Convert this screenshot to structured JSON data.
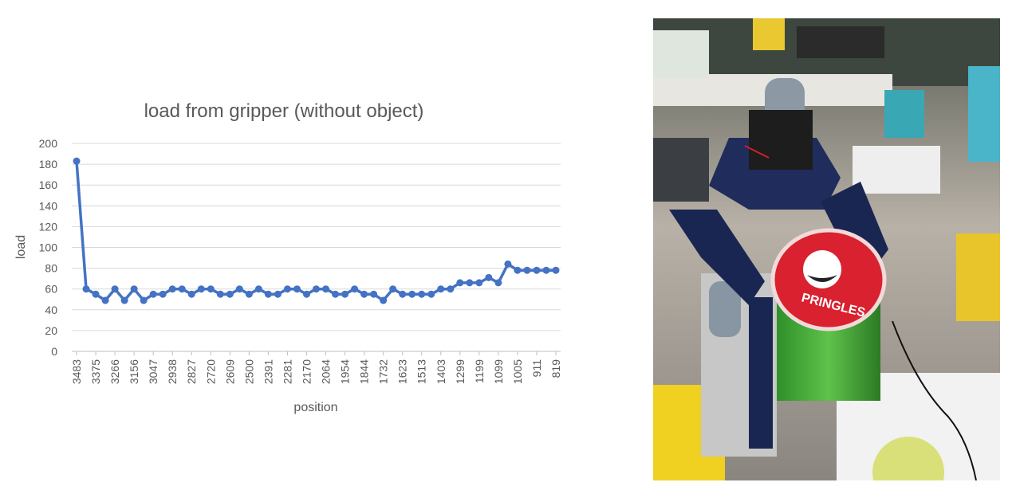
{
  "chart_data": {
    "type": "line",
    "title": "load from gripper (without object)",
    "xlabel": "position",
    "ylabel": "load",
    "ylim": [
      0,
      200
    ],
    "yticks": [
      0,
      20,
      40,
      60,
      80,
      100,
      120,
      140,
      160,
      180,
      200
    ],
    "grid": true,
    "legend": "none",
    "x_tick_labels": [
      "3483",
      "3375",
      "3266",
      "3156",
      "3047",
      "2938",
      "2827",
      "2720",
      "2609",
      "2500",
      "2391",
      "2281",
      "2170",
      "2064",
      "1954",
      "1844",
      "1732",
      "1623",
      "1513",
      "1403",
      "1299",
      "1199",
      "1099",
      "1005",
      "911",
      "819"
    ],
    "series": [
      {
        "values": [
          183,
          60,
          55,
          49,
          60,
          49,
          60,
          49,
          55,
          55,
          60,
          60,
          55,
          60,
          60,
          55,
          55,
          60,
          55,
          60,
          55,
          55,
          60,
          60,
          55,
          60,
          60,
          55,
          55,
          60,
          55,
          55,
          49,
          60,
          55,
          55,
          55,
          55,
          60,
          60,
          66,
          66,
          66,
          71,
          66,
          84,
          78,
          78,
          78,
          78,
          78
        ]
      }
    ],
    "colors": {
      "line": "#4472c4",
      "grid": "#d9d9d9",
      "text": "#595959"
    }
  },
  "photo": {
    "subject": "3D-printed robotic gripper holding a Pringles can",
    "label_text": "PRINGLES"
  }
}
